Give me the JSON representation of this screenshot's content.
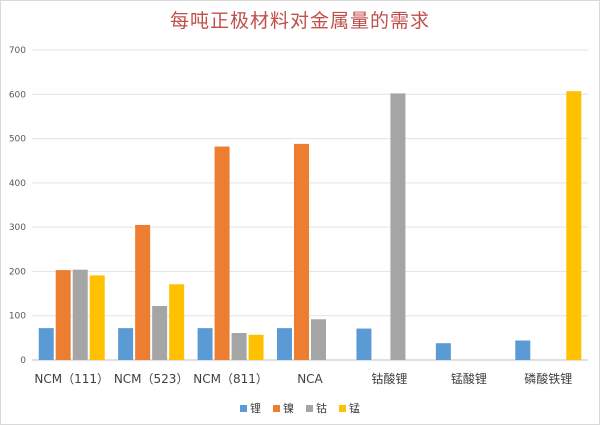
{
  "chart_data": {
    "type": "bar",
    "title": "每吨正极材料对金属量的需求",
    "xlabel": "",
    "ylabel": "",
    "ylim": [
      0,
      700
    ],
    "yticks": [
      0,
      100,
      200,
      300,
      400,
      500,
      600,
      700
    ],
    "grid": true,
    "legend_position": "bottom",
    "categories": [
      "NCM（111）",
      "NCM（523）",
      "NCM（811）",
      "NCA",
      "钴酸锂",
      "锰酸锂",
      "磷酸铁锂"
    ],
    "series": [
      {
        "name": "锂",
        "color": "#5b9bd5",
        "values": [
          72,
          72,
          72,
          72,
          71,
          38,
          44
        ]
      },
      {
        "name": "镍",
        "color": "#ed7d31",
        "values": [
          203,
          305,
          482,
          488,
          0,
          0,
          0
        ]
      },
      {
        "name": "钴",
        "color": "#a5a5a5",
        "values": [
          204,
          122,
          61,
          92,
          602,
          0,
          0
        ]
      },
      {
        "name": "锰",
        "color": "#ffc000",
        "values": [
          191,
          171,
          57,
          0,
          0,
          0,
          607
        ]
      }
    ]
  }
}
